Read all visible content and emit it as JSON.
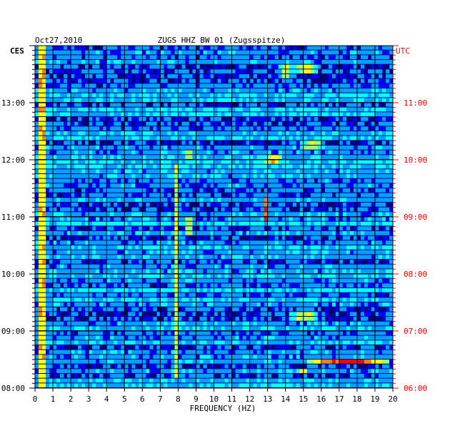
{
  "chart_data": {
    "type": "heatmap",
    "header_left": "Oct27,2010",
    "title": "ZUGS HHZ BW 01 (Zugsspitze)",
    "left_axis_label": "CES",
    "right_axis_label": "UTC",
    "xlabel": "FREQUENCY (HZ)",
    "xlim": [
      0,
      20
    ],
    "x_ticks": [
      "0",
      "1",
      "2",
      "3",
      "4",
      "5",
      "6",
      "7",
      "8",
      "9",
      "10",
      "11",
      "12",
      "13",
      "14",
      "15",
      "16",
      "17",
      "18",
      "19",
      "20"
    ],
    "left_time_ticks": [
      "13:00",
      "12:00",
      "11:00",
      "10:00",
      "09:00",
      "08:00"
    ],
    "right_time_ticks": [
      "11:00",
      "10:00",
      "09:00",
      "08:00",
      "07:00",
      "06:00"
    ],
    "ylim_local_hours": [
      8.0,
      14.0
    ],
    "rows_per_hour": 12,
    "grid": true,
    "colormap": [
      "#000080",
      "#0000ff",
      "#00a0ff",
      "#00ffff",
      "#a0ff60",
      "#ffff00",
      "#ff8000",
      "#ff0000"
    ],
    "hot_spots": [
      {
        "f_hz": 0.4,
        "f_width": 0.6,
        "hours": [
          8.0,
          14.0
        ],
        "level": 0.75
      },
      {
        "f_hz": 7.9,
        "f_width": 0.1,
        "hours": [
          8.2,
          11.9
        ],
        "level": 0.55
      },
      {
        "f_hz": 8.6,
        "f_width": 0.5,
        "hours": [
          10.7,
          11.0
        ],
        "level": 0.6
      },
      {
        "f_hz": 8.6,
        "f_width": 0.4,
        "hours": [
          12.0,
          12.2
        ],
        "level": 0.55
      },
      {
        "f_hz": 12.9,
        "f_width": 0.25,
        "hours": [
          10.9,
          11.3
        ],
        "level": 0.8
      },
      {
        "f_hz": 13.3,
        "f_width": 1.0,
        "hours": [
          11.9,
          12.05
        ],
        "level": 0.65
      },
      {
        "f_hz": 14.0,
        "f_width": 0.6,
        "hours": [
          13.4,
          13.65
        ],
        "level": 0.6
      },
      {
        "f_hz": 15.2,
        "f_width": 1.4,
        "hours": [
          13.5,
          13.65
        ],
        "level": 0.65
      },
      {
        "f_hz": 15.5,
        "f_width": 1.5,
        "hours": [
          12.2,
          12.3
        ],
        "level": 0.55
      },
      {
        "f_hz": 15.0,
        "f_width": 1.6,
        "hours": [
          9.2,
          9.3
        ],
        "level": 0.6
      },
      {
        "f_hz": 15.0,
        "f_width": 0.6,
        "hours": [
          8.25,
          8.35
        ],
        "level": 0.75
      },
      {
        "f_hz": 17.5,
        "f_width": 4.5,
        "hours": [
          8.38,
          8.46
        ],
        "level": 0.95
      },
      {
        "f_hz": 13.0,
        "f_width": 0.3,
        "hours": [
          8.8,
          8.95
        ],
        "level": 0.55
      }
    ]
  }
}
